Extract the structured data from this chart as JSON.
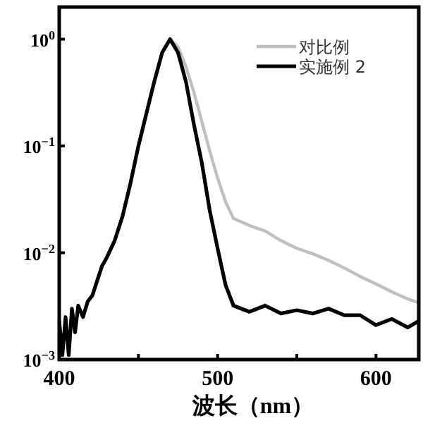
{
  "chart_data": {
    "type": "line",
    "xlabel": "波长（nm）",
    "log": "y",
    "legend": "top right",
    "xlim": [
      400,
      627
    ],
    "ylim": [
      0.001,
      2
    ],
    "xticks": [
      400,
      {
        "value": 450,
        "label": null
      },
      500,
      {
        "value": 550,
        "label": null
      },
      600
    ],
    "yticks": [
      {
        "value": 0.001,
        "label": "10$^{−3}$"
      },
      {
        "value": 0.01,
        "label": "10$^{−2}$"
      },
      {
        "value": 0.1,
        "label": "10$^{−1}$"
      },
      {
        "value": 1,
        "label": "10$^{0}$"
      }
    ],
    "series": [
      {
        "name": "对比例",
        "color": "#bfbfbf",
        "x": [
          440,
          445,
          450,
          455,
          460,
          465,
          470,
          475,
          480,
          485,
          490,
          495,
          500,
          505,
          510,
          520,
          530,
          540,
          550,
          560,
          570,
          580,
          590,
          600,
          610,
          620,
          627
        ],
        "values": [
          0.022,
          0.045,
          0.1,
          0.2,
          0.4,
          0.75,
          1.0,
          0.85,
          0.55,
          0.32,
          0.17,
          0.09,
          0.05,
          0.03,
          0.021,
          0.018,
          0.016,
          0.013,
          0.011,
          0.0098,
          0.0085,
          0.0072,
          0.006,
          0.0051,
          0.0043,
          0.0037,
          0.0034
        ]
      },
      {
        "name": "实施例 2",
        "color": "#000000",
        "x": [
          400,
          402,
          404,
          406,
          408,
          410,
          412,
          415,
          418,
          421,
          424,
          427,
          430,
          435,
          440,
          445,
          450,
          455,
          460,
          465,
          470,
          475,
          480,
          485,
          490,
          495,
          500,
          505,
          510,
          520,
          530,
          540,
          550,
          560,
          570,
          580,
          590,
          600,
          610,
          620,
          627
        ],
        "values": [
          0.0023,
          0.0011,
          0.0025,
          0.0011,
          0.003,
          0.0018,
          0.0032,
          0.0025,
          0.0035,
          0.004,
          0.0055,
          0.0075,
          0.009,
          0.013,
          0.022,
          0.045,
          0.1,
          0.2,
          0.4,
          0.75,
          1.0,
          0.75,
          0.4,
          0.16,
          0.07,
          0.025,
          0.011,
          0.005,
          0.0032,
          0.0028,
          0.0032,
          0.0027,
          0.0029,
          0.0027,
          0.003,
          0.0026,
          0.0026,
          0.0021,
          0.0024,
          0.002,
          0.0023
        ]
      }
    ]
  }
}
